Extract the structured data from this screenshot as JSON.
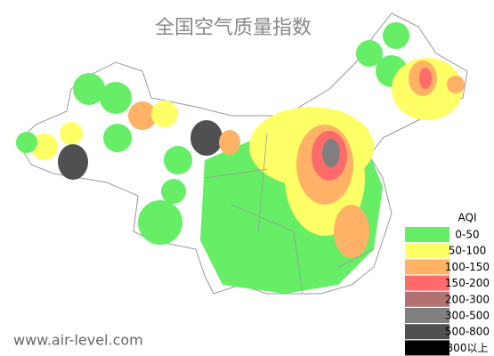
{
  "title": "全国空气质量指数",
  "legend": {
    "title": "AQI",
    "items": [
      {
        "label": "0-50",
        "color": "#66ee66"
      },
      {
        "label": "50-100",
        "color": "#ffff66"
      },
      {
        "label": "100-150",
        "color": "#ffb266"
      },
      {
        "label": "150-200",
        "color": "#ff6a6a"
      },
      {
        "label": "200-300",
        "color": "#b27272"
      },
      {
        "label": "300-500",
        "color": "#7f7f7f"
      },
      {
        "label": "500-800",
        "color": "#505050"
      },
      {
        "label": "800以上",
        "color": "#000000"
      }
    ]
  },
  "footer": "www.air-level.com"
}
